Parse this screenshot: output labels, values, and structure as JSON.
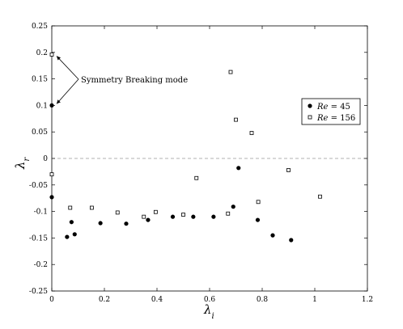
{
  "chart_data": {
    "type": "scatter",
    "title": "",
    "xlabel": "λ",
    "xlabel_sub": "i",
    "ylabel": "λ",
    "ylabel_sub": "r",
    "xlim": [
      0,
      1.2
    ],
    "ylim": [
      -0.25,
      0.25
    ],
    "xticks": [
      0,
      0.2,
      0.4,
      0.6,
      0.8,
      1,
      1.2
    ],
    "xtick_labels": [
      "0",
      "0.2",
      "0.4",
      "0.6",
      "0.8",
      "1",
      "1.2"
    ],
    "yticks": [
      -0.25,
      -0.2,
      -0.15,
      -0.1,
      -0.05,
      0,
      0.05,
      0.1,
      0.15,
      0.2,
      0.25
    ],
    "ytick_labels": [
      "-0.25",
      "-0.2",
      "-0.15",
      "-0.1",
      "-0.05",
      "0",
      "0.05",
      "0.1",
      "0.15",
      "0.2",
      "0.25"
    ],
    "reference_line": {
      "y": 0,
      "style": "dashed",
      "color": "#b0b0b0"
    },
    "grid": false,
    "legend_position": "right",
    "series": [
      {
        "name": "Re = 45",
        "name_italic": "Re",
        "name_rest": " = 45",
        "marker": "filled-circle",
        "color": "#000000",
        "points": [
          [
            0,
            0.1
          ],
          [
            0,
            -0.073
          ],
          [
            0.058,
            -0.148
          ],
          [
            0.075,
            -0.12
          ],
          [
            0.087,
            -0.143
          ],
          [
            0.185,
            -0.122
          ],
          [
            0.283,
            -0.123
          ],
          [
            0.366,
            -0.116
          ],
          [
            0.46,
            -0.11
          ],
          [
            0.538,
            -0.11
          ],
          [
            0.615,
            -0.11
          ],
          [
            0.69,
            -0.091
          ],
          [
            0.71,
            -0.018
          ],
          [
            0.783,
            -0.116
          ],
          [
            0.84,
            -0.145
          ],
          [
            0.91,
            -0.154
          ]
        ]
      },
      {
        "name": "Re = 156",
        "name_italic": "Re",
        "name_rest": " = 156",
        "marker": "hollow-square",
        "color": "#000000",
        "points": [
          [
            0,
            0.196
          ],
          [
            0,
            -0.03
          ],
          [
            0.07,
            -0.093
          ],
          [
            0.152,
            -0.093
          ],
          [
            0.25,
            -0.102
          ],
          [
            0.35,
            -0.11
          ],
          [
            0.395,
            -0.101
          ],
          [
            0.5,
            -0.106
          ],
          [
            0.55,
            -0.037
          ],
          [
            0.67,
            -0.104
          ],
          [
            0.68,
            0.163
          ],
          [
            0.7,
            0.073
          ],
          [
            0.76,
            0.048
          ],
          [
            0.785,
            -0.082
          ],
          [
            0.9,
            -0.022
          ],
          [
            1.02,
            -0.072
          ]
        ]
      }
    ],
    "annotation": {
      "text": "Symmetry Breaking mode",
      "targets": [
        [
          0,
          0.196
        ],
        [
          0,
          0.1
        ]
      ]
    }
  }
}
